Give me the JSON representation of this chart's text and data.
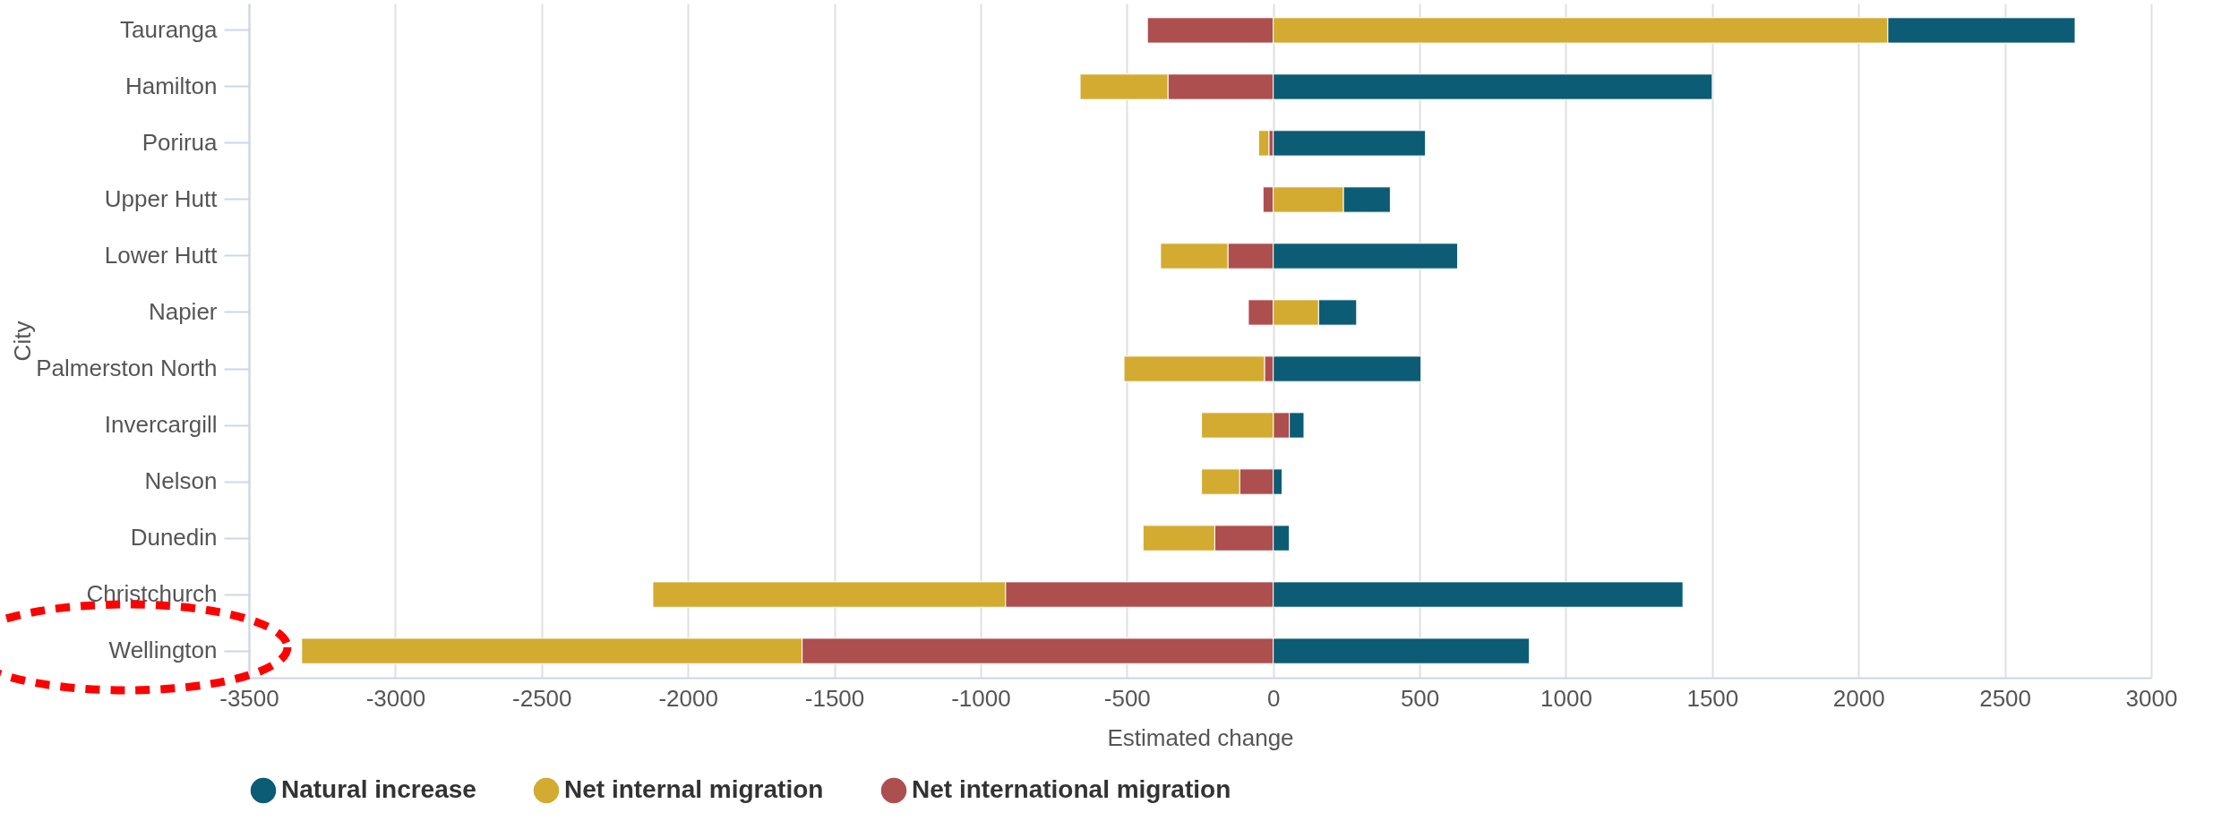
{
  "chart_data": {
    "type": "bar",
    "orientation": "horizontal",
    "stacked": true,
    "xlabel": "Estimated change",
    "ylabel": "City",
    "categories": [
      "Tauranga",
      "Hamilton",
      "Porirua",
      "Upper Hutt",
      "Lower Hutt",
      "Napier",
      "Palmerston North",
      "Invercargill",
      "Nelson",
      "Dunedin",
      "Christchurch",
      "Wellington"
    ],
    "series": [
      {
        "name": "Net international migration",
        "color": "#ad4e4f",
        "values": [
          -430,
          -360,
          -15,
          -35,
          -155,
          -85,
          -30,
          55,
          -115,
          -200,
          -915,
          -1610
        ]
      },
      {
        "name": "Net internal migration",
        "color": "#d2ab30",
        "values": [
          2100,
          -300,
          -35,
          240,
          -230,
          155,
          -480,
          -245,
          -130,
          -245,
          -1205,
          -1710
        ]
      },
      {
        "name": "Natural increase",
        "color": "#0b5c74",
        "values": [
          640,
          1500,
          520,
          160,
          630,
          130,
          505,
          50,
          30,
          55,
          1400,
          875
        ]
      }
    ],
    "xlim": [
      -3500,
      3000
    ],
    "xticks": [
      -3500,
      -3000,
      -2500,
      -2000,
      -1500,
      -1000,
      -500,
      0,
      500,
      1000,
      1500,
      2000,
      2500,
      3000
    ],
    "grid": "x",
    "legend": "bottom"
  }
}
